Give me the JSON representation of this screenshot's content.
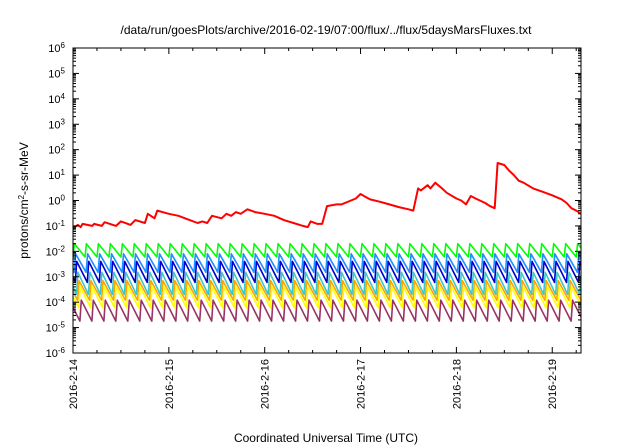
{
  "chart_data": {
    "type": "line",
    "title": "/data/run/goesPlots/archive/2016-02-19/07:00/flux/../flux/5daysMarsFluxes.txt",
    "xlabel": "Coordinated Universal Time (UTC)",
    "ylabel": {
      "prefix": "protons/cm",
      "sup": "2",
      "suffix": "-s-sr-MeV"
    },
    "yscale": "log",
    "ylim_exponents": [
      -6,
      6
    ],
    "yticks": [
      {
        "base": "10",
        "exp": "6"
      },
      {
        "base": "10",
        "exp": "5"
      },
      {
        "base": "10",
        "exp": "4"
      },
      {
        "base": "10",
        "exp": "3"
      },
      {
        "base": "10",
        "exp": "2"
      },
      {
        "base": "10",
        "exp": "1"
      },
      {
        "base": "10",
        "exp": "0"
      },
      {
        "base": "10",
        "exp": "-1"
      },
      {
        "base": "10",
        "exp": "-2"
      },
      {
        "base": "10",
        "exp": "-3"
      },
      {
        "base": "10",
        "exp": "-4"
      },
      {
        "base": "10",
        "exp": "-5"
      },
      {
        "base": "10",
        "exp": "-6"
      }
    ],
    "xlim_days": [
      0,
      5.3
    ],
    "xticks": [
      {
        "label": "2016-2-14",
        "day": 0
      },
      {
        "label": "2016-2-15",
        "day": 1
      },
      {
        "label": "2016-2-16",
        "day": 2
      },
      {
        "label": "2016-2-17",
        "day": 3
      },
      {
        "label": "2016-2-18",
        "day": 4
      },
      {
        "label": "2016-2-19",
        "day": 5
      }
    ],
    "grid": false,
    "legend": "none",
    "series": [
      {
        "color": "#ff0000",
        "kind": "trend",
        "points": [
          [
            0.0,
            0.08
          ],
          [
            0.05,
            0.11
          ],
          [
            0.08,
            0.09
          ],
          [
            0.1,
            0.12
          ],
          [
            0.2,
            0.1
          ],
          [
            0.22,
            0.12
          ],
          [
            0.3,
            0.1
          ],
          [
            0.33,
            0.14
          ],
          [
            0.45,
            0.1
          ],
          [
            0.5,
            0.15
          ],
          [
            0.6,
            0.11
          ],
          [
            0.65,
            0.17
          ],
          [
            0.75,
            0.13
          ],
          [
            0.78,
            0.3
          ],
          [
            0.85,
            0.2
          ],
          [
            0.88,
            0.4
          ],
          [
            1.0,
            0.3
          ],
          [
            1.1,
            0.25
          ],
          [
            1.2,
            0.18
          ],
          [
            1.3,
            0.13
          ],
          [
            1.35,
            0.15
          ],
          [
            1.4,
            0.13
          ],
          [
            1.45,
            0.25
          ],
          [
            1.55,
            0.2
          ],
          [
            1.6,
            0.3
          ],
          [
            1.65,
            0.25
          ],
          [
            1.7,
            0.35
          ],
          [
            1.75,
            0.3
          ],
          [
            1.82,
            0.45
          ],
          [
            1.9,
            0.35
          ],
          [
            2.0,
            0.3
          ],
          [
            2.1,
            0.25
          ],
          [
            2.2,
            0.17
          ],
          [
            2.3,
            0.13
          ],
          [
            2.4,
            0.1
          ],
          [
            2.45,
            0.09
          ],
          [
            2.48,
            0.15
          ],
          [
            2.55,
            0.12
          ],
          [
            2.6,
            0.12
          ],
          [
            2.65,
            0.6
          ],
          [
            2.75,
            0.7
          ],
          [
            2.8,
            0.7
          ],
          [
            2.9,
            1.0
          ],
          [
            2.95,
            1.2
          ],
          [
            3.0,
            1.8
          ],
          [
            3.05,
            1.4
          ],
          [
            3.1,
            1.1
          ],
          [
            3.2,
            0.9
          ],
          [
            3.3,
            0.7
          ],
          [
            3.4,
            0.55
          ],
          [
            3.5,
            0.45
          ],
          [
            3.55,
            0.4
          ],
          [
            3.6,
            3.0
          ],
          [
            3.63,
            2.5
          ],
          [
            3.7,
            4.0
          ],
          [
            3.73,
            3.0
          ],
          [
            3.78,
            5.0
          ],
          [
            3.85,
            3.0
          ],
          [
            3.9,
            2.0
          ],
          [
            4.0,
            1.2
          ],
          [
            4.05,
            1.0
          ],
          [
            4.1,
            0.7
          ],
          [
            4.15,
            1.5
          ],
          [
            4.2,
            1.2
          ],
          [
            4.3,
            0.8
          ],
          [
            4.35,
            0.6
          ],
          [
            4.4,
            0.5
          ],
          [
            4.43,
            30.0
          ],
          [
            4.5,
            25.0
          ],
          [
            4.55,
            15.0
          ],
          [
            4.6,
            10.0
          ],
          [
            4.65,
            6.0
          ],
          [
            4.7,
            5.0
          ],
          [
            4.8,
            3.0
          ],
          [
            4.9,
            2.2
          ],
          [
            5.0,
            1.6
          ],
          [
            5.1,
            1.1
          ],
          [
            5.15,
            0.8
          ],
          [
            5.2,
            0.5
          ],
          [
            5.25,
            0.4
          ],
          [
            5.3,
            0.3
          ]
        ]
      },
      {
        "color": "#00ff00",
        "kind": "sawtooth",
        "period_days": 0.125,
        "high": 0.02,
        "low": 0.006,
        "shift_days": 0.0
      },
      {
        "color": "#1e90ff",
        "kind": "sawtooth",
        "period_days": 0.125,
        "high": 0.008,
        "low": 0.0015,
        "shift_days": 0.012
      },
      {
        "color": "#0000cd",
        "kind": "sawtooth",
        "period_days": 0.125,
        "high": 0.004,
        "low": 0.0006,
        "shift_days": 0.024
      },
      {
        "color": "#3cc8c8",
        "kind": "sawtooth",
        "period_days": 0.125,
        "high": 0.0015,
        "low": 0.0002,
        "shift_days": 0.036
      },
      {
        "color": "#ffa500",
        "kind": "sawtooth",
        "period_days": 0.125,
        "high": 0.0007,
        "low": 0.00012,
        "shift_days": 0.048
      },
      {
        "color": "#ffff00",
        "kind": "sawtooth",
        "period_days": 0.125,
        "high": 0.0004,
        "low": 6e-05,
        "shift_days": 0.06
      },
      {
        "color": "#993366",
        "kind": "sawtooth",
        "period_days": 0.125,
        "high": 0.00012,
        "low": 1.8e-05,
        "shift_days": 0.072
      }
    ]
  }
}
